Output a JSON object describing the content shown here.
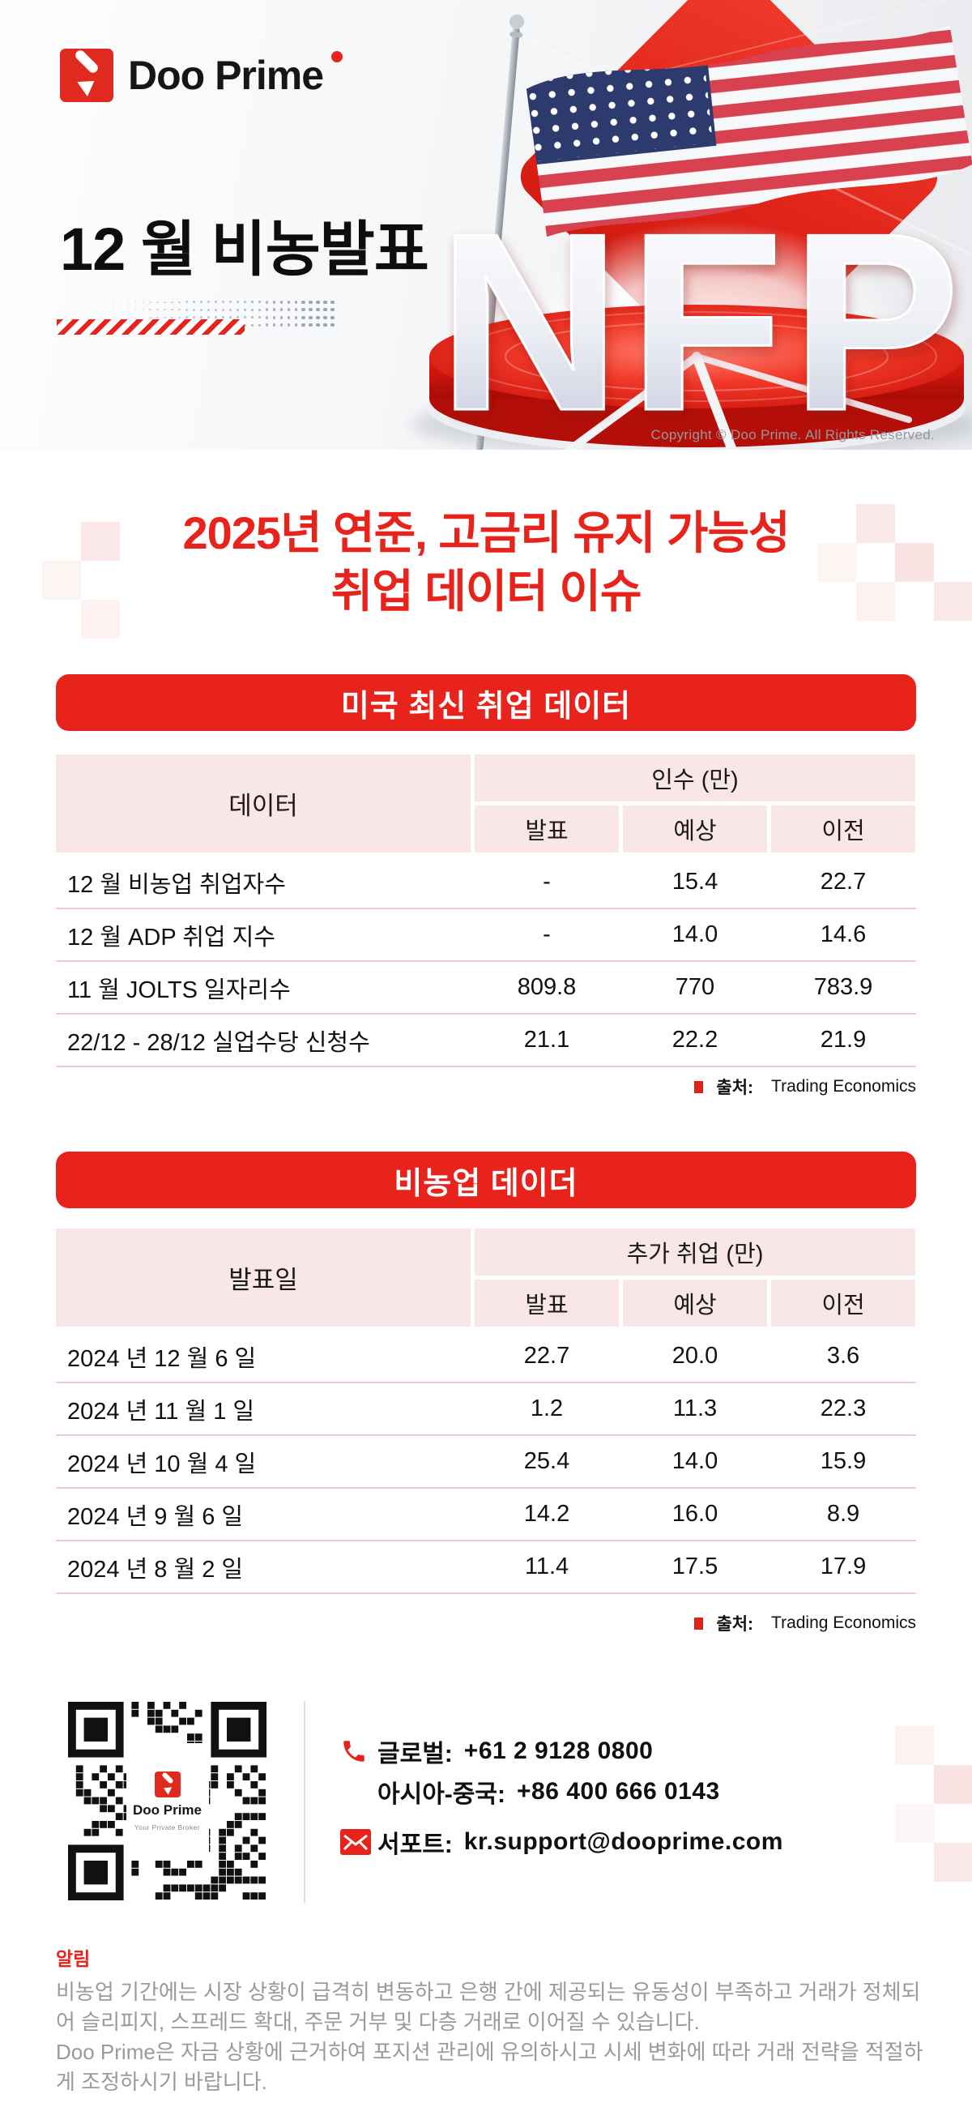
{
  "banner": {
    "logo_brand": "Doo Prime",
    "title": "12 월 비농발표",
    "nfp_text": "NFP",
    "copyright": "Copyright © Doo Prime. All Rights Reserved."
  },
  "heading": {
    "line1": "2025년 연준, 고금리 유지 가능성",
    "line2": "취업 데이터 이슈"
  },
  "employment_table": {
    "section_title": "미국 최신 취업 데이터",
    "row_header": "데이터",
    "group_header": "인수 (만)",
    "columns": {
      "announced": "발표",
      "expected": "예상",
      "previous": "이전"
    },
    "rows": [
      {
        "label": "12 월 비농업 취업자수",
        "announced": "-",
        "expected": "15.4",
        "previous": "22.7"
      },
      {
        "label": "12 월 ADP 취업 지수",
        "announced": "-",
        "expected": "14.0",
        "previous": "14.6"
      },
      {
        "label": "11 월 JOLTS 일자리수",
        "announced": "809.8",
        "expected": "770",
        "previous": "783.9"
      },
      {
        "label": "22/12 - 28/12 실업수당 신청수",
        "announced": "21.1",
        "expected": "22.2",
        "previous": "21.9"
      }
    ],
    "source_label": "출처:",
    "source": "Trading Economics"
  },
  "nfp_table": {
    "section_title": "비농업 데이더",
    "row_header": "발표일",
    "group_header": "추가 취업 (만)",
    "columns": {
      "announced": "발표",
      "expected": "예상",
      "previous": "이전"
    },
    "rows": [
      {
        "label": "2024 년 12 월 6 일",
        "announced": "22.7",
        "expected": "20.0",
        "previous": "3.6"
      },
      {
        "label": "2024 년 11 월 1 일",
        "announced": "1.2",
        "expected": "11.3",
        "previous": "22.3"
      },
      {
        "label": "2024 년 10 월 4 일",
        "announced": "25.4",
        "expected": "14.0",
        "previous": "15.9"
      },
      {
        "label": "2024 년 9 월 6 일",
        "announced": "14.2",
        "expected": "16.0",
        "previous": "8.9"
      },
      {
        "label": "2024 년 8 월 2 일",
        "announced": "11.4",
        "expected": "17.5",
        "previous": "17.9"
      }
    ],
    "source_label": "출처:",
    "source": "Trading Economics"
  },
  "footer": {
    "qr_brand": "Doo Prime",
    "qr_tagline": "Your Private Broker",
    "global_label": "글로벌:",
    "global_value": "+61 2 9128 0800",
    "asia_label": "아시아-중국:",
    "asia_value": "+86 400 666 0143",
    "support_label": "서포트:",
    "support_value": "kr.support@dooprime.com"
  },
  "disclaimer": {
    "title": "알림",
    "para1": "비농업 기간에는 시장 상황이 급격히 변동하고 은행 간에 제공되는 유동성이 부족하고 거래가 정체되어 슬리피지, 스프레드 확대, 주문 거부 및 다층 거래로 이어질 수 있습니다.",
    "para2": "Doo Prime은 자금 상황에 근거하여 포지션 관리에 유의하시고 시세 변화에 따라 거래 전략을 적절하게 조정하시기 바랍니다."
  },
  "colors": {
    "brand_red": "#E7231B",
    "header_pink": "#F9E6E6",
    "row_divider_pink": "#EFCBCB",
    "flag_navy": "#2C3A6E",
    "dots_gray_blue": "#93A2B4",
    "disclaimer_gray": "#9A9A9A"
  }
}
